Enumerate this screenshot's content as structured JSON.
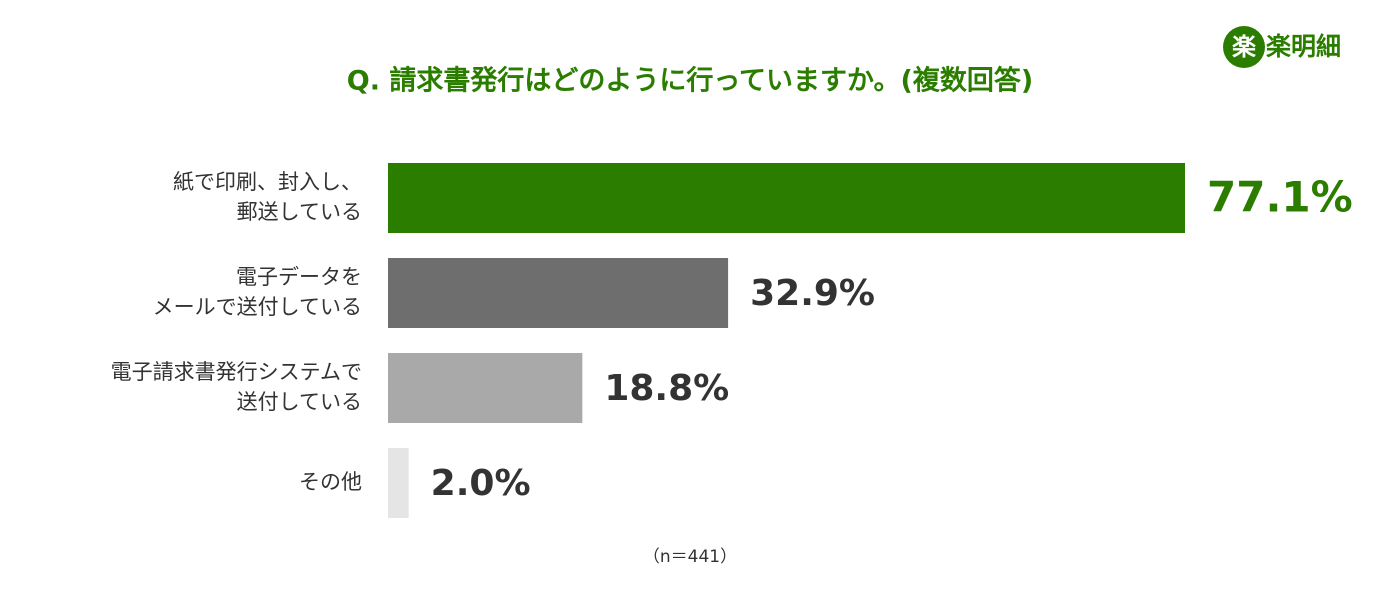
{
  "logo_mark": "楽",
  "logo_text": "楽明細",
  "chart_data": {
    "type": "bar",
    "orientation": "horizontal",
    "title": "Q. 請求書発行はどのように行っていますか。(複数回答)",
    "categories": [
      [
        "紙で印刷、封入し、",
        "郵送している"
      ],
      [
        "電子データを",
        "メールで送付している"
      ],
      [
        "電子請求書発行システムで",
        "送付している"
      ],
      [
        "その他"
      ]
    ],
    "values": [
      77.1,
      32.9,
      18.8,
      2.0
    ],
    "value_labels": [
      "77.1%",
      "32.9%",
      "18.8%",
      "2.0%"
    ],
    "colors": [
      "#2b7d00",
      "#6e6e6e",
      "#a9a9a9",
      "#e5e5e5"
    ],
    "label_colors": [
      "#2b7d00",
      "#333333",
      "#333333",
      "#333333"
    ],
    "note": "（n＝441）"
  }
}
